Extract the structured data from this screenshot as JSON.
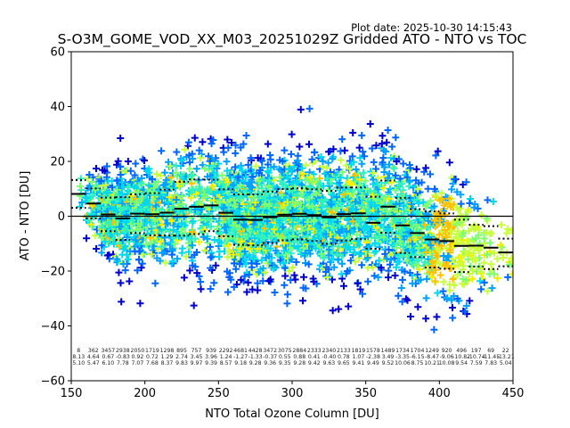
{
  "chart_data": {
    "type": "scatter",
    "title": "S-O3M_GOME_VOD_XX_M03_20251029Z Gridded ATO - NTO vs TOC",
    "subtitle": "Plot date: 2025-10-30 14:15:43",
    "xlabel": "NTO Total Ozone Column [DU]",
    "ylabel": "ATO - NTO [DU]",
    "xlim": [
      150,
      450
    ],
    "ylim": [
      -60,
      60
    ],
    "xticks": [
      "150",
      "200",
      "250",
      "300",
      "350",
      "400",
      "450"
    ],
    "yticks": [
      "−60",
      "−40",
      "−20",
      "0",
      "20",
      "40",
      "60"
    ],
    "xtick_values": [
      150,
      200,
      250,
      300,
      350,
      400,
      450
    ],
    "ytick_values": [
      -60,
      -40,
      -20,
      0,
      20,
      40,
      60
    ],
    "grid": false,
    "reference_line_y": 0,
    "marker": "+",
    "marker_colors": [
      "#0000cd",
      "#0066ff",
      "#00a0ff",
      "#00d8f0",
      "#30f0c0",
      "#7cff70",
      "#c8ff3c",
      "#f0f000",
      "#ffc000",
      "#ff9a00"
    ],
    "bins": {
      "bin_width": 10,
      "bin_starts": [
        150,
        160,
        170,
        180,
        190,
        200,
        210,
        220,
        230,
        240,
        250,
        260,
        270,
        280,
        290,
        300,
        310,
        320,
        330,
        340,
        350,
        360,
        370,
        380,
        390,
        400,
        410,
        420,
        430,
        440
      ],
      "counts": [
        "8",
        "362",
        "3457",
        "2938",
        "2050",
        "1719",
        "1298",
        "895",
        "757",
        "939",
        "2292",
        "4681",
        "4428",
        "3472",
        "3075",
        "2884",
        "2333",
        "2340",
        "2133",
        "1819",
        "1578",
        "1489",
        "1734",
        "1704",
        "1249",
        "920",
        "496",
        "197",
        "69",
        "22"
      ],
      "means": [
        "8.13",
        "4.64",
        "0.67",
        "-0.83",
        "0.92",
        "0.72",
        "1.29",
        "2.74",
        "3.45",
        "3.96",
        "1.24",
        "-1.27",
        "-1.33",
        "-0.37",
        "0.55",
        "0.88",
        "0.41",
        "-0.40",
        "0.78",
        "1.07",
        "-2.38",
        "3.49",
        "-3.35",
        "-6.15",
        "-8.47",
        "-9.06",
        "-10.82",
        "-10.74",
        "-11.45",
        "-13.21"
      ],
      "stds": [
        "5.10",
        "5.47",
        "6.10",
        "7.78",
        "7.07",
        "7.68",
        "8.37",
        "9.83",
        "9.97",
        "9.39",
        "8.57",
        "9.18",
        "9.28",
        "9.36",
        "9.35",
        "9.28",
        "9.42",
        "9.63",
        "9.65",
        "9.41",
        "9.49",
        "9.52",
        "10.06",
        "8.75",
        "10.21",
        "10.08",
        "9.54",
        "7.59",
        "7.83",
        "5.04"
      ]
    }
  }
}
